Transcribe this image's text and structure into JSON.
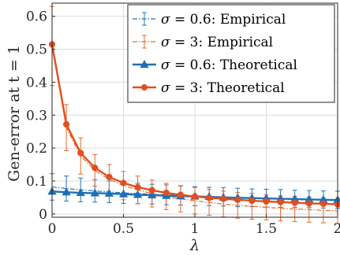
{
  "chart_data": {
    "type": "line",
    "xlabel": "λ",
    "ylabel": "Gen-error at t = 1",
    "xlim": [
      0,
      2
    ],
    "ylim": [
      -0.01,
      0.64
    ],
    "xticks": [
      0,
      0.5,
      1,
      1.5,
      2
    ],
    "xtick_labels": [
      "0",
      "0.5",
      "1",
      "1.5",
      "2"
    ],
    "yticks": [
      0,
      0.1,
      0.2,
      0.3,
      0.4,
      0.5,
      0.6
    ],
    "ytick_labels": [
      "0",
      "0.1",
      "0.2",
      "0.3",
      "0.4",
      "0.5",
      "0.6"
    ],
    "grid": true,
    "legend_position": "top-right",
    "x": [
      0,
      0.1,
      0.2,
      0.3,
      0.4,
      0.5,
      0.6,
      0.7,
      0.8,
      0.9,
      1.0,
      1.1,
      1.2,
      1.3,
      1.4,
      1.5,
      1.6,
      1.7,
      1.8,
      1.9,
      2.0
    ],
    "series": [
      {
        "name": "σ = 0.6: Empirical",
        "color": "#2473b7",
        "style": "dash-dot with error bars",
        "values": [
          0.082,
          0.077,
          0.073,
          0.07,
          0.067,
          0.064,
          0.062,
          0.06,
          0.058,
          0.056,
          0.054,
          0.053,
          0.052,
          0.05,
          0.049,
          0.048,
          0.047,
          0.046,
          0.045,
          0.044,
          0.043
        ],
        "errors": [
          0.04,
          0.038,
          0.036,
          0.034,
          0.033,
          0.032,
          0.031,
          0.03,
          0.03,
          0.029,
          0.029,
          0.028,
          0.028,
          0.028,
          0.027,
          0.027,
          0.027,
          0.026,
          0.026,
          0.026,
          0.026
        ]
      },
      {
        "name": "σ = 3: Empirical",
        "color": "#e46a2c",
        "style": "dash-dot with error bars",
        "values": [
          0.51,
          0.262,
          0.176,
          0.132,
          0.105,
          0.086,
          0.073,
          0.062,
          0.053,
          0.046,
          0.04,
          0.035,
          0.03,
          0.026,
          0.023,
          0.02,
          0.017,
          0.015,
          0.013,
          0.011,
          0.009
        ],
        "errors": [
          0.12,
          0.07,
          0.055,
          0.048,
          0.045,
          0.043,
          0.042,
          0.041,
          0.04,
          0.04,
          0.04,
          0.039,
          0.039,
          0.039,
          0.039,
          0.038,
          0.038,
          0.038,
          0.038,
          0.038,
          0.038
        ]
      },
      {
        "name": "σ = 0.6: Theoretical",
        "color": "#1f6fb8",
        "style": "solid with triangle markers",
        "values": [
          0.068,
          0.066,
          0.064,
          0.063,
          0.062,
          0.06,
          0.058,
          0.057,
          0.055,
          0.054,
          0.053,
          0.052,
          0.05,
          0.049,
          0.048,
          0.047,
          0.046,
          0.045,
          0.044,
          0.043,
          0.042
        ]
      },
      {
        "name": "σ = 3: Theoretical",
        "color": "#e04f1e",
        "style": "solid with circle markers",
        "values": [
          0.515,
          0.272,
          0.185,
          0.14,
          0.112,
          0.094,
          0.081,
          0.072,
          0.064,
          0.058,
          0.053,
          0.049,
          0.046,
          0.043,
          0.04,
          0.038,
          0.036,
          0.034,
          0.032,
          0.031,
          0.029
        ]
      }
    ]
  }
}
